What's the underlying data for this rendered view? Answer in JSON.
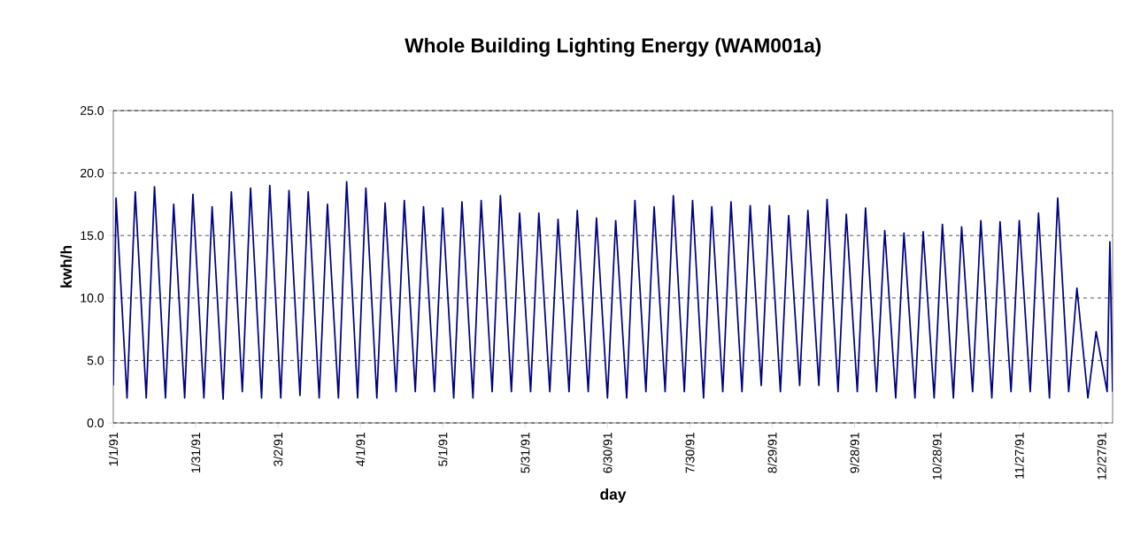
{
  "chart_data": {
    "type": "line",
    "title": "Whole Building Lighting Energy (WAM001a)",
    "xlabel": "day",
    "ylabel": "kwh/h",
    "x": [
      "1991-01-01",
      "1991-01-02",
      "1991-01-06",
      "1991-01-09",
      "1991-01-13",
      "1991-01-16",
      "1991-01-20",
      "1991-01-23",
      "1991-01-27",
      "1991-01-30",
      "1991-02-03",
      "1991-02-06",
      "1991-02-10",
      "1991-02-13",
      "1991-02-17",
      "1991-02-20",
      "1991-02-24",
      "1991-02-27",
      "1991-03-03",
      "1991-03-06",
      "1991-03-10",
      "1991-03-13",
      "1991-03-17",
      "1991-03-20",
      "1991-03-24",
      "1991-03-27",
      "1991-03-31",
      "1991-04-03",
      "1991-04-07",
      "1991-04-10",
      "1991-04-14",
      "1991-04-17",
      "1991-04-21",
      "1991-04-24",
      "1991-04-28",
      "1991-05-01",
      "1991-05-05",
      "1991-05-08",
      "1991-05-12",
      "1991-05-15",
      "1991-05-19",
      "1991-05-22",
      "1991-05-26",
      "1991-05-29",
      "1991-06-02",
      "1991-06-05",
      "1991-06-09",
      "1991-06-12",
      "1991-06-16",
      "1991-06-19",
      "1991-06-23",
      "1991-06-26",
      "1991-06-30",
      "1991-07-03",
      "1991-07-07",
      "1991-07-10",
      "1991-07-14",
      "1991-07-17",
      "1991-07-21",
      "1991-07-24",
      "1991-07-28",
      "1991-07-31",
      "1991-08-04",
      "1991-08-07",
      "1991-08-11",
      "1991-08-14",
      "1991-08-18",
      "1991-08-21",
      "1991-08-25",
      "1991-08-28",
      "1991-09-01",
      "1991-09-04",
      "1991-09-08",
      "1991-09-11",
      "1991-09-15",
      "1991-09-18",
      "1991-09-22",
      "1991-09-25",
      "1991-09-29",
      "1991-10-02",
      "1991-10-06",
      "1991-10-09",
      "1991-10-13",
      "1991-10-16",
      "1991-10-20",
      "1991-10-23",
      "1991-10-27",
      "1991-10-30",
      "1991-11-03",
      "1991-11-06",
      "1991-11-10",
      "1991-11-13",
      "1991-11-17",
      "1991-11-20",
      "1991-11-24",
      "1991-11-27",
      "1991-12-01",
      "1991-12-04",
      "1991-12-08",
      "1991-12-11",
      "1991-12-15",
      "1991-12-18",
      "1991-12-22",
      "1991-12-25",
      "1991-12-29",
      "1991-12-30",
      "1991-12-31"
    ],
    "series": [
      {
        "color": "#000080",
        "values": [
          3.0,
          18.0,
          2.0,
          18.5,
          2.0,
          18.9,
          2.0,
          17.5,
          2.0,
          18.3,
          2.0,
          17.3,
          1.9,
          18.5,
          2.5,
          18.8,
          2.0,
          19.0,
          2.0,
          18.6,
          2.2,
          18.5,
          2.0,
          17.5,
          2.0,
          19.3,
          2.0,
          18.8,
          2.0,
          17.6,
          2.5,
          17.8,
          2.5,
          17.3,
          2.5,
          17.2,
          2.0,
          17.7,
          2.0,
          17.8,
          2.5,
          18.2,
          2.5,
          16.8,
          2.5,
          16.8,
          2.5,
          16.3,
          2.5,
          17.0,
          2.5,
          16.4,
          2.0,
          16.2,
          2.0,
          17.8,
          2.5,
          17.3,
          2.5,
          18.2,
          2.5,
          17.8,
          2.0,
          17.3,
          2.5,
          17.7,
          2.5,
          17.4,
          3.0,
          17.4,
          2.5,
          16.6,
          3.0,
          17.0,
          3.0,
          17.9,
          2.5,
          16.7,
          2.5,
          17.2,
          2.5,
          15.4,
          2.0,
          15.2,
          2.0,
          15.3,
          2.0,
          15.9,
          2.0,
          15.7,
          2.5,
          16.2,
          2.0,
          16.1,
          2.5,
          16.2,
          2.5,
          16.8,
          2.0,
          18.0,
          2.5,
          10.8,
          2.0,
          7.3,
          2.5,
          14.5,
          2.5
        ]
      }
    ],
    "xlim": [
      "1991-01-01",
      "1991-12-31"
    ],
    "xticks": [
      {
        "value": "1991-01-01",
        "label": "1/1/91"
      },
      {
        "value": "1991-01-31",
        "label": "1/31/91"
      },
      {
        "value": "1991-03-02",
        "label": "3/2/91"
      },
      {
        "value": "1991-04-01",
        "label": "4/1/91"
      },
      {
        "value": "1991-05-01",
        "label": "5/1/91"
      },
      {
        "value": "1991-05-31",
        "label": "5/31/91"
      },
      {
        "value": "1991-06-30",
        "label": "6/30/91"
      },
      {
        "value": "1991-07-30",
        "label": "7/30/91"
      },
      {
        "value": "1991-08-29",
        "label": "8/29/91"
      },
      {
        "value": "1991-09-28",
        "label": "9/28/91"
      },
      {
        "value": "1991-10-28",
        "label": "10/28/91"
      },
      {
        "value": "1991-11-27",
        "label": "11/27/91"
      },
      {
        "value": "1991-12-27",
        "label": "12/27/91"
      }
    ],
    "ylim": [
      0,
      25
    ],
    "yticks": [
      {
        "value": 0,
        "label": "0.0"
      },
      {
        "value": 5,
        "label": "5.0"
      },
      {
        "value": 10,
        "label": "10.0"
      },
      {
        "value": 15,
        "label": "15.0"
      },
      {
        "value": 20,
        "label": "20.0"
      },
      {
        "value": 25,
        "label": "25.0"
      }
    ],
    "grid": "y",
    "marker": "none",
    "line_style": "solid"
  }
}
